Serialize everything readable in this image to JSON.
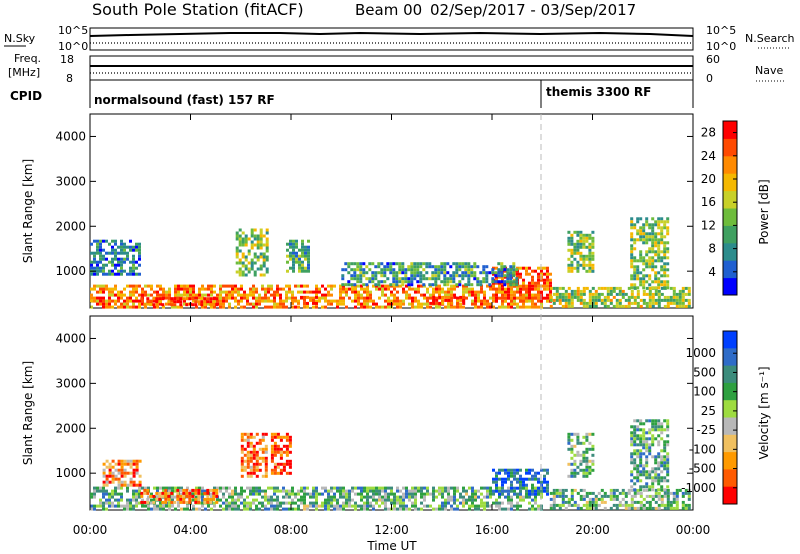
{
  "header": {
    "station": "South Pole Station (fitACF)",
    "beam": "Beam 00",
    "date_range": "02/Sep/2017 - 03/Sep/2017"
  },
  "top_panels": {
    "nsky_label": "N.Sky",
    "nsearch_label": "N.Search",
    "nsky_ticks": [
      "10^5",
      "10^0"
    ],
    "nsearch_ticks": [
      "10^5",
      "10^0"
    ],
    "freq_label_1": "Freq.",
    "freq_label_2": "[MHz]",
    "freq_ticks": [
      "18",
      "8"
    ],
    "nave_ticks": [
      "60",
      "0"
    ],
    "nave_label": "Nave",
    "cpid_label": "CPID",
    "cpid_segments": [
      {
        "label": "normalsound (fast) 157 RF",
        "start_hour": 0
      },
      {
        "label": "themis 3300 RF",
        "start_hour": 18
      }
    ]
  },
  "colors": {
    "power": [
      "#0000ff",
      "#1f5fd0",
      "#2c8c8c",
      "#3fa060",
      "#6ebc3c",
      "#c8d028",
      "#f5b800",
      "#ff8a00",
      "#ff4a00",
      "#ff0000"
    ],
    "velocity": [
      "#ff0000",
      "#ff5a00",
      "#ff9a00",
      "#f0c060",
      "#b8b8b8",
      "#9edc40",
      "#2ea040",
      "#3c8c7c",
      "#2f6cc8",
      "#0040ff"
    ]
  },
  "chart_data": [
    {
      "type": "heatmap",
      "name": "power-panel",
      "ylabel": "Slant Range [km]",
      "yticks": [
        1000,
        2000,
        3000,
        4000
      ],
      "ylim": [
        180,
        4500
      ],
      "xlim": [
        0,
        24
      ],
      "colorbar": {
        "label": "Power [dB]",
        "ticks": [
          4,
          8,
          12,
          16,
          20,
          24,
          28
        ],
        "range": [
          0,
          30
        ]
      },
      "regions": [
        {
          "x": [
            0.0,
            18.0
          ],
          "y": [
            200,
            700
          ],
          "level": 0.75
        },
        {
          "x": [
            2.0,
            5.0
          ],
          "y": [
            250,
            420
          ],
          "level": 0.9
        },
        {
          "x": [
            8.0,
            9.0
          ],
          "y": [
            250,
            450
          ],
          "level": 0.95
        },
        {
          "x": [
            13.5,
            15.0
          ],
          "y": [
            250,
            450
          ],
          "level": 0.9
        },
        {
          "x": [
            16.0,
            18.3
          ],
          "y": [
            350,
            1100
          ],
          "level": 0.85
        },
        {
          "x": [
            0.0,
            2.0
          ],
          "y": [
            900,
            1700
          ],
          "level": 0.25
        },
        {
          "x": [
            5.8,
            7.0
          ],
          "y": [
            900,
            1950
          ],
          "level": 0.45
        },
        {
          "x": [
            7.8,
            8.7
          ],
          "y": [
            1000,
            1700
          ],
          "level": 0.35
        },
        {
          "x": [
            10.0,
            17.0
          ],
          "y": [
            700,
            1200
          ],
          "level": 0.3
        },
        {
          "x": [
            18.3,
            23.8
          ],
          "y": [
            200,
            650
          ],
          "level": 0.5
        },
        {
          "x": [
            19.0,
            20.0
          ],
          "y": [
            1000,
            1900
          ],
          "level": 0.45
        },
        {
          "x": [
            21.5,
            23.0
          ],
          "y": [
            600,
            2200
          ],
          "level": 0.45
        }
      ]
    },
    {
      "type": "heatmap",
      "name": "velocity-panel",
      "ylabel": "Slant Range [km]",
      "yticks": [
        1000,
        2000,
        3000,
        4000
      ],
      "ylim": [
        180,
        4500
      ],
      "xlim": [
        0,
        24
      ],
      "xlabel": "Time UT",
      "xticks": [
        "00:00",
        "04:00",
        "08:00",
        "12:00",
        "16:00",
        "20:00",
        "00:00"
      ],
      "colorbar": {
        "label": "Velocity [m s⁻¹]",
        "ticks": [
          1000,
          500,
          100,
          25,
          -25,
          -100,
          -500,
          -1000
        ]
      },
      "regions": [
        {
          "x": [
            0.0,
            18.0
          ],
          "y": [
            200,
            700
          ],
          "level": 0.62
        },
        {
          "x": [
            2.0,
            5.0
          ],
          "y": [
            350,
            650
          ],
          "level": 0.2
        },
        {
          "x": [
            7.2,
            8.0
          ],
          "y": [
            1000,
            1900
          ],
          "level": 0.1
        },
        {
          "x": [
            6.0,
            7.0
          ],
          "y": [
            900,
            1900
          ],
          "level": 0.2
        },
        {
          "x": [
            0.5,
            2.0
          ],
          "y": [
            700,
            1300
          ],
          "level": 0.25
        },
        {
          "x": [
            16.0,
            18.2
          ],
          "y": [
            500,
            1100
          ],
          "level": 0.88
        },
        {
          "x": [
            18.3,
            23.8
          ],
          "y": [
            200,
            650
          ],
          "level": 0.6
        },
        {
          "x": [
            19.0,
            20.0
          ],
          "y": [
            900,
            1900
          ],
          "level": 0.6
        },
        {
          "x": [
            21.5,
            23.0
          ],
          "y": [
            600,
            2200
          ],
          "level": 0.62
        }
      ]
    }
  ]
}
